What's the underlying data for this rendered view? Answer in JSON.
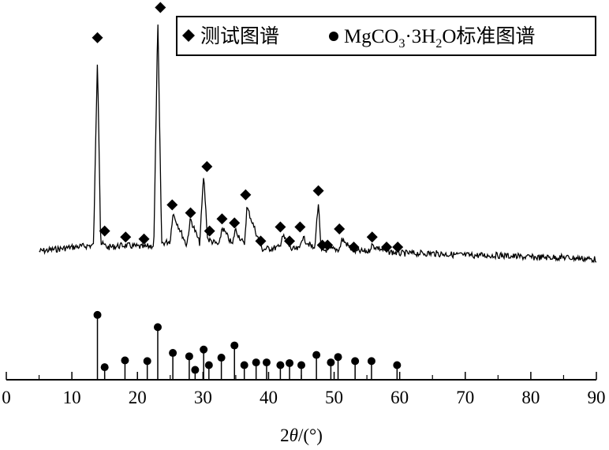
{
  "chart_data": {
    "type": "line",
    "xlabel_prefix": "2",
    "xlabel_theta": "θ",
    "xlabel_suffix": "/(°)",
    "xlim": [
      0,
      90
    ],
    "x_ticks": [
      0,
      10,
      20,
      30,
      40,
      50,
      60,
      70,
      80,
      90
    ],
    "x_tick_labels": [
      "0",
      "10",
      "20",
      "30",
      "40",
      "50",
      "60",
      "70",
      "80",
      "90"
    ],
    "legend": {
      "placement": "top-right",
      "entries": [
        {
          "marker": "diamond",
          "label": "测试图谱"
        },
        {
          "marker": "circle",
          "label_parts": [
            "MgCO",
            "3",
            "·3H",
            "2",
            "O标准图谱"
          ]
        }
      ]
    },
    "series": [
      {
        "marker": "diamond",
        "x": [
          5,
          10,
          13.3,
          13.9,
          14.4,
          15.5,
          18,
          21,
          22.5,
          23.1,
          23.7,
          25,
          25.4,
          27.5,
          28.1,
          29.5,
          30.1,
          30.7,
          32.5,
          32.9,
          34.5,
          34.9,
          36.3,
          36.7,
          39,
          41.7,
          42.1,
          43.5,
          44.7,
          45.1,
          47,
          47.6,
          48,
          49,
          50,
          50.8,
          51.2,
          53,
          55.3,
          55.7,
          58,
          60,
          65,
          70,
          75,
          80,
          85,
          90
        ],
        "y": [
          0.03,
          0.05,
          0.06,
          1.0,
          0.07,
          0.05,
          0.06,
          0.05,
          0.06,
          1.18,
          0.07,
          0.08,
          0.22,
          0.06,
          0.19,
          0.07,
          0.41,
          0.09,
          0.06,
          0.15,
          0.06,
          0.14,
          0.06,
          0.25,
          0.04,
          0.05,
          0.11,
          0.04,
          0.04,
          0.1,
          0.04,
          0.27,
          0.03,
          0.04,
          0.04,
          0.04,
          0.09,
          0.03,
          0.03,
          0.06,
          0.03,
          0.02,
          0.02,
          0.01,
          0.01,
          0.0,
          0.0,
          -0.01
        ],
        "markers_x": [
          13.9,
          15.0,
          18.2,
          21.0,
          23.5,
          25.3,
          28.1,
          30.6,
          31.0,
          32.9,
          34.8,
          36.5,
          38.8,
          41.8,
          43.2,
          44.8,
          47.6,
          48.2,
          49.0,
          50.8,
          53.0,
          55.8,
          58.0,
          59.7
        ],
        "markers_y": [
          1.04,
          0.08,
          0.05,
          0.04,
          1.19,
          0.21,
          0.17,
          0.4,
          0.08,
          0.14,
          0.12,
          0.26,
          0.03,
          0.1,
          0.03,
          0.1,
          0.28,
          0.01,
          0.01,
          0.09,
          0.0,
          0.05,
          0.0,
          0.0
        ]
      },
      {
        "marker": "circle",
        "x": [
          13.9,
          15.0,
          18.1,
          21.5,
          23.1,
          25.4,
          27.9,
          28.8,
          30.1,
          30.9,
          32.8,
          34.8,
          36.3,
          38.1,
          39.7,
          41.8,
          43.2,
          45.0,
          47.3,
          49.5,
          50.6,
          53.2,
          55.7,
          59.6
        ],
        "y": [
          0.92,
          0.15,
          0.25,
          0.24,
          0.74,
          0.36,
          0.31,
          0.11,
          0.41,
          0.18,
          0.29,
          0.47,
          0.18,
          0.22,
          0.22,
          0.18,
          0.21,
          0.18,
          0.33,
          0.22,
          0.3,
          0.24,
          0.24,
          0.18
        ]
      }
    ]
  }
}
